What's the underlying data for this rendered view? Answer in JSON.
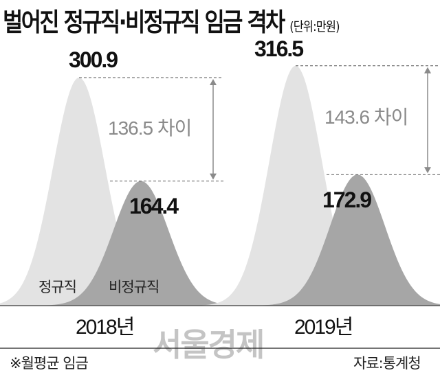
{
  "chart_data": {
    "type": "area",
    "title": "벌어진 정규직·비정규직 임금 격차",
    "unit": "(단위:만원)",
    "categories": [
      "2018년",
      "2019년"
    ],
    "series": [
      {
        "name": "정규직",
        "values": [
          300.9,
          316.5
        ],
        "color": "#e3e3e3"
      },
      {
        "name": "비정규직",
        "values": [
          164.4,
          172.9
        ],
        "color": "#a6a6a6"
      }
    ],
    "value_labels": {
      "regular": [
        "300.9",
        "316.5"
      ],
      "nonregular": [
        "164.4",
        "172.9"
      ]
    },
    "gap_labels": [
      "136.5 차이",
      "143.6 차이"
    ],
    "series_labels": [
      "정규직",
      "비정규직"
    ],
    "note": "※월평균 임금",
    "source": "자료:통계청",
    "watermark": "서울경제"
  }
}
